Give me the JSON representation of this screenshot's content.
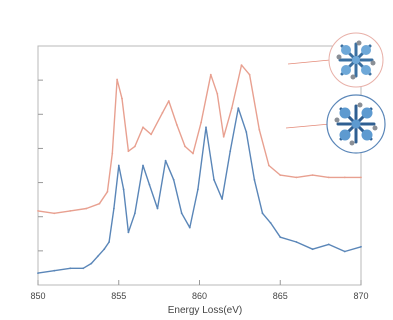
{
  "chart_data": {
    "type": "line",
    "xlabel": "Energy Loss(eV)",
    "ylabel": "",
    "title": "",
    "xlim": [
      850,
      870
    ],
    "ylim": [
      0,
      1
    ],
    "grid": false,
    "x_ticks": [
      "850",
      "855",
      "860",
      "865",
      "870"
    ],
    "series": [
      {
        "color": "#e8a090",
        "points": [
          [
            850.0,
            0.31
          ],
          [
            851.0,
            0.3
          ],
          [
            852.0,
            0.31
          ],
          [
            853.0,
            0.32
          ],
          [
            853.8,
            0.34
          ],
          [
            854.3,
            0.39
          ],
          [
            854.6,
            0.55
          ],
          [
            854.9,
            0.86
          ],
          [
            855.2,
            0.78
          ],
          [
            855.6,
            0.56
          ],
          [
            856.0,
            0.58
          ],
          [
            856.5,
            0.66
          ],
          [
            857.0,
            0.63
          ],
          [
            857.7,
            0.72
          ],
          [
            858.1,
            0.77
          ],
          [
            858.6,
            0.67
          ],
          [
            859.1,
            0.58
          ],
          [
            859.6,
            0.55
          ],
          [
            860.1,
            0.68
          ],
          [
            860.7,
            0.88
          ],
          [
            861.1,
            0.8
          ],
          [
            861.5,
            0.62
          ],
          [
            862.0,
            0.74
          ],
          [
            862.6,
            0.92
          ],
          [
            863.1,
            0.88
          ],
          [
            863.7,
            0.65
          ],
          [
            864.3,
            0.5
          ],
          [
            865.0,
            0.46
          ],
          [
            866.0,
            0.45
          ],
          [
            867.0,
            0.46
          ],
          [
            868.0,
            0.45
          ],
          [
            869.0,
            0.45
          ],
          [
            870.0,
            0.45
          ]
        ]
      },
      {
        "color": "#5a86b8",
        "points": [
          [
            850.0,
            0.05
          ],
          [
            851.0,
            0.06
          ],
          [
            852.0,
            0.07
          ],
          [
            852.8,
            0.07
          ],
          [
            853.3,
            0.09
          ],
          [
            853.7,
            0.12
          ],
          [
            854.1,
            0.15
          ],
          [
            854.4,
            0.18
          ],
          [
            854.7,
            0.32
          ],
          [
            855.0,
            0.5
          ],
          [
            855.3,
            0.4
          ],
          [
            855.6,
            0.22
          ],
          [
            856.0,
            0.3
          ],
          [
            856.5,
            0.5
          ],
          [
            856.9,
            0.42
          ],
          [
            857.4,
            0.32
          ],
          [
            857.9,
            0.52
          ],
          [
            858.4,
            0.44
          ],
          [
            858.9,
            0.3
          ],
          [
            859.4,
            0.24
          ],
          [
            859.9,
            0.4
          ],
          [
            860.4,
            0.66
          ],
          [
            860.9,
            0.44
          ],
          [
            861.4,
            0.36
          ],
          [
            861.9,
            0.56
          ],
          [
            862.4,
            0.74
          ],
          [
            862.9,
            0.64
          ],
          [
            863.4,
            0.44
          ],
          [
            863.9,
            0.3
          ],
          [
            864.4,
            0.26
          ],
          [
            865.0,
            0.2
          ],
          [
            866.0,
            0.18
          ],
          [
            867.0,
            0.15
          ],
          [
            868.0,
            0.17
          ],
          [
            869.0,
            0.14
          ],
          [
            870.0,
            0.16
          ]
        ]
      }
    ]
  }
}
